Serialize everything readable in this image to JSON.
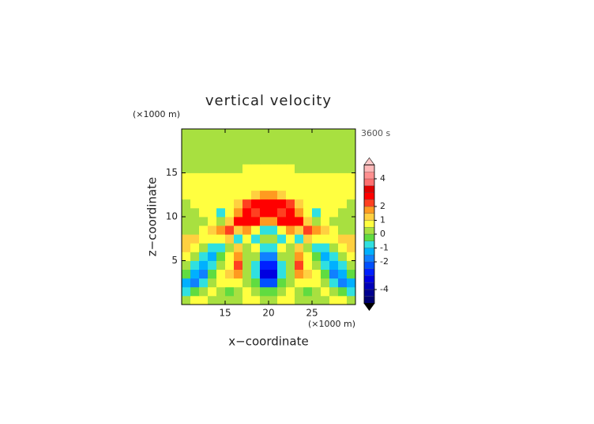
{
  "chart_data": {
    "type": "contour",
    "title": "vertical velocity",
    "time_label": "3600 s",
    "x_label": "x−coordinate",
    "y_label": "z−coordinate",
    "x_unit": "(×1000 m)",
    "y_unit": "(×1000 m)",
    "xlim": [
      10,
      30
    ],
    "ylim": [
      0,
      20
    ],
    "xticks": [
      15,
      20,
      25
    ],
    "yticks": [
      5,
      10,
      15
    ],
    "x": [
      10.5,
      11.5,
      12.5,
      13.5,
      14.5,
      15.5,
      16.5,
      17.5,
      18.5,
      19.5,
      20.5,
      21.5,
      22.5,
      23.5,
      24.5,
      25.5,
      26.5,
      27.5,
      28.5,
      29.5
    ],
    "y": [
      0.5,
      1.5,
      2.5,
      3.5,
      4.5,
      5.5,
      6.5,
      7.5,
      8.5,
      9.5,
      10.5,
      11.5,
      12.5,
      13.5,
      14.5,
      15.5,
      16.5,
      17.5,
      18.5,
      19.5
    ],
    "z": [
      [
        0.2,
        0.7,
        0.7,
        0.2,
        0.2,
        0.2,
        0.2,
        0.7,
        0.7,
        0.2,
        0.2,
        0.7,
        0.7,
        0.2,
        0.2,
        0.2,
        0.2,
        0.7,
        0.7,
        0.2
      ],
      [
        -0.7,
        -0.2,
        0.2,
        0.7,
        0.2,
        -0.2,
        0.2,
        0.7,
        0.2,
        -0.2,
        -0.2,
        0.2,
        0.7,
        0.2,
        -0.2,
        0.2,
        0.7,
        0.2,
        -0.2,
        -0.7
      ],
      [
        -1.2,
        -1.7,
        -0.7,
        0.2,
        0.7,
        0.7,
        0.7,
        0.2,
        -0.2,
        -2.2,
        -2.2,
        -0.2,
        0.2,
        0.7,
        0.7,
        0.7,
        0.2,
        -0.7,
        -1.7,
        -1.2
      ],
      [
        -0.2,
        -1.2,
        -1.7,
        -0.2,
        0.7,
        1.2,
        1.7,
        0.2,
        -0.7,
        -3.2,
        -3.2,
        -0.7,
        0.2,
        1.7,
        1.2,
        0.7,
        -0.2,
        -1.7,
        -1.2,
        -0.2
      ],
      [
        0.2,
        -0.7,
        -1.2,
        -0.7,
        0.2,
        0.7,
        2.2,
        0.2,
        -0.7,
        -2.7,
        -2.7,
        -0.7,
        0.2,
        2.2,
        0.7,
        0.2,
        -0.7,
        -1.2,
        -0.7,
        0.2
      ],
      [
        0.7,
        0.2,
        -0.7,
        -1.2,
        -0.2,
        0.7,
        1.7,
        0.2,
        0.2,
        -1.7,
        -1.7,
        0.2,
        0.2,
        1.7,
        0.7,
        -0.2,
        -1.2,
        -0.7,
        0.2,
        0.7
      ],
      [
        1.2,
        0.7,
        0.2,
        -0.7,
        -0.7,
        0.2,
        1.2,
        0.2,
        0.7,
        -0.7,
        -0.7,
        0.7,
        0.2,
        1.2,
        0.2,
        -0.7,
        -0.7,
        0.2,
        0.7,
        1.2
      ],
      [
        1.2,
        1.2,
        0.7,
        0.7,
        0.7,
        1.2,
        -0.7,
        0.7,
        -0.7,
        0.2,
        0.2,
        -0.7,
        0.7,
        -0.7,
        1.2,
        0.7,
        0.7,
        0.7,
        1.2,
        1.2
      ],
      [
        0.2,
        0.2,
        0.7,
        1.2,
        1.7,
        2.2,
        1.2,
        1.7,
        0.7,
        -0.7,
        -0.7,
        0.7,
        1.7,
        1.2,
        2.2,
        1.7,
        1.2,
        0.7,
        0.2,
        0.2
      ],
      [
        0.2,
        0.2,
        0.2,
        0.7,
        0.2,
        1.2,
        2.7,
        2.7,
        2.7,
        1.7,
        1.7,
        2.7,
        2.7,
        2.7,
        1.2,
        0.2,
        0.7,
        0.2,
        0.2,
        0.2
      ],
      [
        0.2,
        0.2,
        0.7,
        0.7,
        -0.7,
        0.7,
        1.7,
        2.7,
        2.2,
        2.7,
        2.7,
        2.2,
        2.7,
        1.7,
        0.7,
        -0.7,
        0.7,
        0.7,
        0.2,
        0.2
      ],
      [
        0.2,
        0.7,
        0.7,
        0.7,
        0.7,
        0.7,
        1.2,
        2.2,
        2.7,
        2.7,
        2.7,
        2.7,
        2.2,
        1.2,
        0.7,
        0.7,
        0.7,
        0.7,
        0.7,
        0.2
      ],
      [
        0.7,
        0.7,
        0.7,
        0.7,
        0.7,
        0.7,
        0.7,
        0.7,
        1.2,
        1.7,
        1.7,
        1.2,
        0.7,
        0.7,
        0.7,
        0.7,
        0.7,
        0.7,
        0.7,
        0.7
      ],
      [
        0.7,
        0.7,
        0.7,
        0.7,
        0.7,
        0.7,
        0.7,
        0.7,
        0.7,
        0.7,
        0.7,
        0.7,
        0.7,
        0.7,
        0.7,
        0.7,
        0.7,
        0.7,
        0.7,
        0.7
      ],
      [
        0.7,
        0.7,
        0.7,
        0.7,
        0.7,
        0.7,
        0.7,
        0.7,
        0.7,
        0.7,
        0.7,
        0.7,
        0.7,
        0.7,
        0.7,
        0.7,
        0.7,
        0.7,
        0.7,
        0.7
      ],
      [
        0.2,
        0.2,
        0.2,
        0.2,
        0.2,
        0.2,
        0.2,
        0.7,
        0.7,
        0.7,
        0.7,
        0.7,
        0.7,
        0.2,
        0.2,
        0.2,
        0.2,
        0.2,
        0.2,
        0.2
      ],
      [
        0.2,
        0.2,
        0.2,
        0.2,
        0.2,
        0.2,
        0.2,
        0.2,
        0.2,
        0.2,
        0.2,
        0.2,
        0.2,
        0.2,
        0.2,
        0.2,
        0.2,
        0.2,
        0.2,
        0.2
      ],
      [
        0.2,
        0.2,
        0.2,
        0.2,
        0.2,
        0.2,
        0.2,
        0.2,
        0.2,
        0.2,
        0.2,
        0.2,
        0.2,
        0.2,
        0.2,
        0.2,
        0.2,
        0.2,
        0.2,
        0.2
      ],
      [
        0.2,
        0.2,
        0.2,
        0.2,
        0.2,
        0.2,
        0.2,
        0.2,
        0.2,
        0.2,
        0.2,
        0.2,
        0.2,
        0.2,
        0.2,
        0.2,
        0.2,
        0.2,
        0.2,
        0.2
      ],
      [
        0.2,
        0.2,
        0.2,
        0.2,
        0.2,
        0.2,
        0.2,
        0.2,
        0.2,
        0.2,
        0.2,
        0.2,
        0.2,
        0.2,
        0.2,
        0.2,
        0.2,
        0.2,
        0.2,
        0.2
      ]
    ],
    "levels": [
      -5,
      -4.5,
      -4,
      -3.5,
      -3,
      -2.5,
      -2,
      -1.5,
      -1,
      -0.5,
      0,
      0.5,
      1,
      1.5,
      2,
      2.5,
      3,
      3.5,
      4,
      4.5,
      5
    ],
    "colors": [
      "#000070",
      "#000090",
      "#0000b8",
      "#0000e0",
      "#0020ff",
      "#0050ff",
      "#1080ff",
      "#00b0ff",
      "#30e0e0",
      "#60dc40",
      "#a8e040",
      "#ffff40",
      "#ffd040",
      "#ff9a20",
      "#ff4020",
      "#ff0000",
      "#e00000",
      "#ff7070",
      "#ff9090",
      "#ffb8b8"
    ],
    "under_color": "#000000",
    "over_color": "#ffc8c8",
    "colorbar_ticks": [
      -4,
      -2,
      -1,
      0,
      1,
      2,
      4
    ]
  }
}
